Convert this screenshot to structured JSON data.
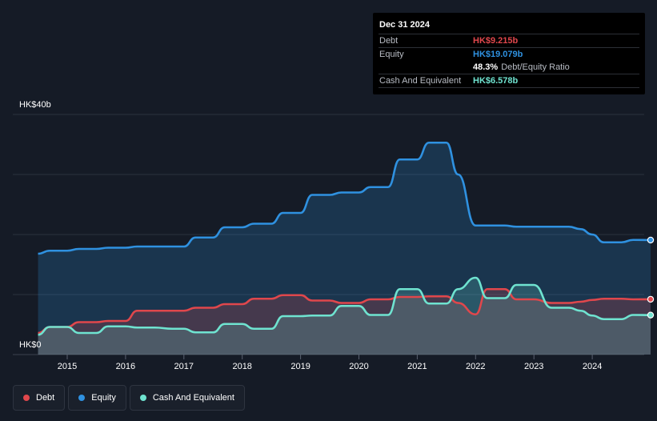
{
  "tooltip": {
    "date": "Dec 31 2024",
    "debt_label": "Debt",
    "debt_value": "HK$9.215b",
    "equity_label": "Equity",
    "equity_value": "HK$19.079b",
    "ratio_value": "48.3%",
    "ratio_label": "Debt/Equity Ratio",
    "cash_label": "Cash And Equivalent",
    "cash_value": "HK$6.578b"
  },
  "axis": {
    "y_top_label": "HK$40b",
    "y_bottom_label": "HK$0"
  },
  "legend": [
    {
      "label": "Debt",
      "color": "#e0474c"
    },
    {
      "label": "Equity",
      "color": "#2f91e0"
    },
    {
      "label": "Cash And Equivalent",
      "color": "#6fe3d0"
    }
  ],
  "chart_data": {
    "type": "area",
    "ylim": [
      0,
      40
    ],
    "y_unit": "HK$b",
    "xlim": [
      2014.5,
      2025.0
    ],
    "x_ticks": [
      2015,
      2016,
      2017,
      2018,
      2019,
      2020,
      2021,
      2022,
      2023,
      2024
    ],
    "x_tick_labels": [
      "2015",
      "2016",
      "2017",
      "2018",
      "2019",
      "2020",
      "2021",
      "2022",
      "2023",
      "2024"
    ],
    "grid": true,
    "series": [
      {
        "name": "Equity",
        "color": "#2f91e0",
        "points": [
          [
            2014.5,
            16.8
          ],
          [
            2014.7,
            17.3
          ],
          [
            2014.9,
            17.3
          ],
          [
            2015.0,
            17.3
          ],
          [
            2015.2,
            17.6
          ],
          [
            2015.5,
            17.6
          ],
          [
            2015.7,
            17.8
          ],
          [
            2016.0,
            17.8
          ],
          [
            2016.2,
            18.0
          ],
          [
            2016.5,
            18.0
          ],
          [
            2016.8,
            18.0
          ],
          [
            2017.0,
            18.0
          ],
          [
            2017.2,
            19.5
          ],
          [
            2017.5,
            19.5
          ],
          [
            2017.7,
            21.2
          ],
          [
            2018.0,
            21.2
          ],
          [
            2018.2,
            21.8
          ],
          [
            2018.5,
            21.8
          ],
          [
            2018.7,
            23.6
          ],
          [
            2019.0,
            23.6
          ],
          [
            2019.2,
            26.6
          ],
          [
            2019.5,
            26.6
          ],
          [
            2019.7,
            27.0
          ],
          [
            2020.0,
            27.0
          ],
          [
            2020.2,
            27.9
          ],
          [
            2020.5,
            27.9
          ],
          [
            2020.7,
            32.5
          ],
          [
            2021.0,
            32.5
          ],
          [
            2021.2,
            35.3
          ],
          [
            2021.5,
            35.3
          ],
          [
            2021.7,
            30.0
          ],
          [
            2022.0,
            21.5
          ],
          [
            2022.2,
            21.5
          ],
          [
            2022.5,
            21.5
          ],
          [
            2022.7,
            21.3
          ],
          [
            2023.0,
            21.3
          ],
          [
            2023.3,
            21.3
          ],
          [
            2023.6,
            21.3
          ],
          [
            2023.8,
            20.9
          ],
          [
            2024.0,
            20.0
          ],
          [
            2024.2,
            18.7
          ],
          [
            2024.5,
            18.7
          ],
          [
            2024.7,
            19.1
          ],
          [
            2025.0,
            19.079
          ]
        ]
      },
      {
        "name": "Debt",
        "color": "#e0474c",
        "points": [
          [
            2014.5,
            3.6
          ],
          [
            2014.7,
            4.6
          ],
          [
            2014.9,
            4.6
          ],
          [
            2015.0,
            4.6
          ],
          [
            2015.2,
            5.4
          ],
          [
            2015.5,
            5.4
          ],
          [
            2015.7,
            5.6
          ],
          [
            2016.0,
            5.6
          ],
          [
            2016.2,
            7.3
          ],
          [
            2016.5,
            7.3
          ],
          [
            2016.8,
            7.3
          ],
          [
            2017.0,
            7.3
          ],
          [
            2017.2,
            7.8
          ],
          [
            2017.5,
            7.8
          ],
          [
            2017.7,
            8.4
          ],
          [
            2018.0,
            8.4
          ],
          [
            2018.2,
            9.3
          ],
          [
            2018.5,
            9.3
          ],
          [
            2018.7,
            9.9
          ],
          [
            2019.0,
            9.9
          ],
          [
            2019.2,
            9.0
          ],
          [
            2019.5,
            9.0
          ],
          [
            2019.7,
            8.6
          ],
          [
            2020.0,
            8.6
          ],
          [
            2020.2,
            9.2
          ],
          [
            2020.5,
            9.2
          ],
          [
            2020.7,
            9.6
          ],
          [
            2021.0,
            9.6
          ],
          [
            2021.2,
            9.7
          ],
          [
            2021.5,
            9.7
          ],
          [
            2021.7,
            8.6
          ],
          [
            2022.0,
            6.7
          ],
          [
            2022.2,
            10.9
          ],
          [
            2022.5,
            10.9
          ],
          [
            2022.7,
            9.2
          ],
          [
            2023.0,
            9.2
          ],
          [
            2023.3,
            8.6
          ],
          [
            2023.6,
            8.6
          ],
          [
            2023.8,
            8.8
          ],
          [
            2024.0,
            9.1
          ],
          [
            2024.2,
            9.3
          ],
          [
            2024.5,
            9.3
          ],
          [
            2024.7,
            9.2
          ],
          [
            2025.0,
            9.215
          ]
        ]
      },
      {
        "name": "Cash And Equivalent",
        "color": "#6fe3d0",
        "points": [
          [
            2014.5,
            3.3
          ],
          [
            2014.7,
            4.6
          ],
          [
            2014.9,
            4.6
          ],
          [
            2015.0,
            4.6
          ],
          [
            2015.2,
            3.6
          ],
          [
            2015.5,
            3.6
          ],
          [
            2015.7,
            4.7
          ],
          [
            2016.0,
            4.7
          ],
          [
            2016.2,
            4.5
          ],
          [
            2016.5,
            4.5
          ],
          [
            2016.8,
            4.3
          ],
          [
            2017.0,
            4.3
          ],
          [
            2017.2,
            3.7
          ],
          [
            2017.5,
            3.7
          ],
          [
            2017.7,
            5.1
          ],
          [
            2018.0,
            5.1
          ],
          [
            2018.2,
            4.3
          ],
          [
            2018.5,
            4.3
          ],
          [
            2018.7,
            6.4
          ],
          [
            2019.0,
            6.4
          ],
          [
            2019.2,
            6.5
          ],
          [
            2019.5,
            6.5
          ],
          [
            2019.7,
            8.1
          ],
          [
            2020.0,
            8.1
          ],
          [
            2020.2,
            6.6
          ],
          [
            2020.5,
            6.6
          ],
          [
            2020.7,
            10.9
          ],
          [
            2021.0,
            10.9
          ],
          [
            2021.2,
            8.5
          ],
          [
            2021.5,
            8.5
          ],
          [
            2021.7,
            10.9
          ],
          [
            2022.0,
            12.8
          ],
          [
            2022.2,
            9.4
          ],
          [
            2022.5,
            9.4
          ],
          [
            2022.7,
            11.6
          ],
          [
            2023.0,
            11.6
          ],
          [
            2023.3,
            7.8
          ],
          [
            2023.6,
            7.8
          ],
          [
            2023.8,
            7.3
          ],
          [
            2024.0,
            6.5
          ],
          [
            2024.2,
            5.9
          ],
          [
            2024.5,
            5.9
          ],
          [
            2024.7,
            6.6
          ],
          [
            2025.0,
            6.578
          ]
        ]
      }
    ]
  }
}
